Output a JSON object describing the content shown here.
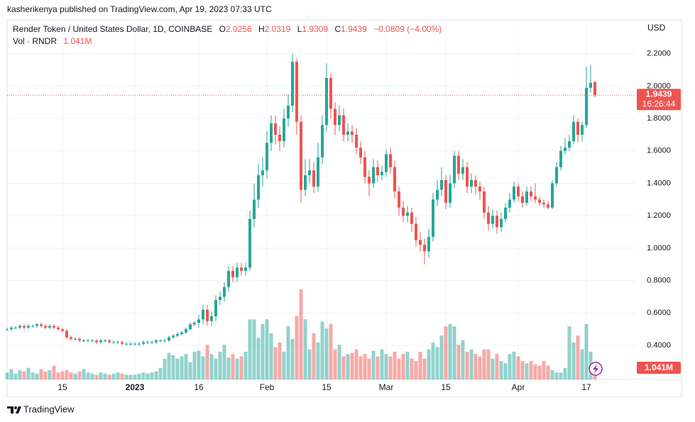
{
  "header": {
    "publisher": "kasherikenya published on TradingView.com, Apr 19, 2023 07:33 UTC",
    "footer": "TradingView"
  },
  "chart_data": {
    "type": "candlestick",
    "title": "Render Token / United States Dollar, 1D, COINBASE",
    "ohlc_labels": [
      "O",
      "H",
      "L",
      "C"
    ],
    "change": "−0.0809 (−4.00%)",
    "currency": "USD",
    "countdown": "16:26:44",
    "up_color": "#26a69a",
    "down_color": "#ef5350",
    "grid": true,
    "categories": [
      null,
      null,
      null,
      null,
      null,
      null,
      null,
      null,
      null,
      null,
      null,
      null,
      null,
      "15",
      null,
      null,
      null,
      null,
      null,
      null,
      null,
      null,
      null,
      null,
      null,
      null,
      null,
      null,
      null,
      null,
      "2023",
      null,
      null,
      null,
      null,
      null,
      null,
      null,
      null,
      null,
      null,
      null,
      null,
      null,
      null,
      "16",
      null,
      null,
      null,
      null,
      null,
      null,
      null,
      null,
      null,
      null,
      null,
      null,
      null,
      null,
      null,
      "Feb",
      null,
      null,
      null,
      null,
      null,
      null,
      null,
      null,
      null,
      null,
      null,
      null,
      null,
      "15",
      null,
      null,
      null,
      null,
      null,
      null,
      null,
      null,
      null,
      null,
      null,
      null,
      null,
      "Mar",
      null,
      null,
      null,
      null,
      null,
      null,
      null,
      null,
      null,
      null,
      null,
      null,
      null,
      "15",
      null,
      null,
      null,
      null,
      null,
      null,
      null,
      null,
      null,
      null,
      null,
      null,
      null,
      null,
      null,
      null,
      "Apr",
      null,
      null,
      null,
      null,
      null,
      null,
      null,
      null,
      null,
      null,
      null,
      null,
      null,
      null,
      null,
      "17",
      null,
      null
    ],
    "open": [
      0.5,
      0.5,
      0.51,
      0.51,
      0.52,
      0.51,
      0.52,
      0.52,
      0.53,
      0.52,
      0.51,
      0.52,
      0.51,
      0.5,
      0.49,
      0.45,
      0.44,
      0.44,
      0.43,
      0.43,
      0.43,
      0.43,
      0.42,
      0.43,
      0.43,
      0.42,
      0.42,
      0.42,
      0.41,
      0.41,
      0.41,
      0.41,
      0.41,
      0.42,
      0.42,
      0.42,
      0.43,
      0.43,
      0.43,
      0.45,
      0.46,
      0.47,
      0.48,
      0.5,
      0.53,
      0.54,
      0.56,
      0.62,
      0.55,
      0.58,
      0.68,
      0.7,
      0.76,
      0.86,
      0.82,
      0.88,
      0.86,
      0.88,
      1.18,
      1.3,
      1.45,
      1.48,
      1.65,
      1.77,
      1.7,
      1.66,
      1.8,
      1.88,
      2.15,
      1.78,
      1.36,
      1.45,
      1.48,
      1.38,
      1.56,
      1.76,
      2.05,
      1.86,
      1.76,
      1.82,
      1.7,
      1.72,
      1.7,
      1.62,
      1.56,
      1.44,
      1.4,
      1.5,
      1.45,
      1.47,
      1.58,
      1.5,
      1.35,
      1.25,
      1.2,
      1.22,
      1.15,
      1.05,
      1.02,
      0.98,
      1.07,
      1.3,
      1.36,
      1.42,
      1.28,
      1.4,
      1.57,
      1.46,
      1.5,
      1.38,
      1.42,
      1.38,
      1.35,
      1.22,
      1.15,
      1.2,
      1.13,
      1.18,
      1.25,
      1.3,
      1.38,
      1.32,
      1.28,
      1.35,
      1.32,
      1.3,
      1.28,
      1.27,
      1.25,
      1.4,
      1.5,
      1.6,
      1.62,
      1.66,
      1.78,
      1.7,
      1.76,
      1.99,
      2.0256
    ],
    "high": [
      0.51,
      0.52,
      0.52,
      0.53,
      0.53,
      0.53,
      0.53,
      0.54,
      0.54,
      0.53,
      0.53,
      0.53,
      0.52,
      0.51,
      0.5,
      0.46,
      0.45,
      0.45,
      0.44,
      0.44,
      0.44,
      0.44,
      0.44,
      0.44,
      0.44,
      0.43,
      0.43,
      0.43,
      0.42,
      0.42,
      0.42,
      0.42,
      0.43,
      0.43,
      0.43,
      0.44,
      0.44,
      0.44,
      0.46,
      0.47,
      0.48,
      0.49,
      0.51,
      0.54,
      0.55,
      0.59,
      0.65,
      0.65,
      0.61,
      0.71,
      0.73,
      0.79,
      0.89,
      0.89,
      0.91,
      0.91,
      0.91,
      1.23,
      1.4,
      1.52,
      1.56,
      1.72,
      1.82,
      1.82,
      1.75,
      1.86,
      1.95,
      2.2,
      2.17,
      1.82,
      1.55,
      1.55,
      1.53,
      1.65,
      1.82,
      2.14,
      2.08,
      1.9,
      1.88,
      1.86,
      1.77,
      1.76,
      1.74,
      1.66,
      1.6,
      1.48,
      1.55,
      1.54,
      1.51,
      1.61,
      1.62,
      1.54,
      1.38,
      1.29,
      1.26,
      1.25,
      1.19,
      1.1,
      1.06,
      1.12,
      1.34,
      1.42,
      1.5,
      1.45,
      1.45,
      1.6,
      1.6,
      1.55,
      1.53,
      1.46,
      1.45,
      1.41,
      1.38,
      1.26,
      1.24,
      1.23,
      1.22,
      1.28,
      1.34,
      1.41,
      1.4,
      1.35,
      1.38,
      1.38,
      1.4,
      1.32,
      1.3,
      1.29,
      1.42,
      1.53,
      1.63,
      1.68,
      1.7,
      1.82,
      1.8,
      1.78,
      2.12,
      2.13,
      2.0319
    ],
    "low": [
      0.49,
      0.49,
      0.5,
      0.5,
      0.5,
      0.5,
      0.51,
      0.51,
      0.51,
      0.5,
      0.5,
      0.5,
      0.49,
      0.48,
      0.44,
      0.43,
      0.43,
      0.42,
      0.42,
      0.42,
      0.42,
      0.41,
      0.41,
      0.42,
      0.41,
      0.41,
      0.41,
      0.4,
      0.4,
      0.4,
      0.4,
      0.4,
      0.4,
      0.41,
      0.41,
      0.41,
      0.42,
      0.42,
      0.42,
      0.44,
      0.45,
      0.46,
      0.47,
      0.49,
      0.52,
      0.51,
      0.53,
      0.52,
      0.52,
      0.55,
      0.65,
      0.67,
      0.73,
      0.79,
      0.79,
      0.83,
      0.83,
      0.86,
      1.13,
      1.25,
      1.38,
      1.43,
      1.6,
      1.64,
      1.6,
      1.62,
      1.75,
      1.84,
      1.7,
      1.28,
      1.32,
      1.4,
      1.34,
      1.35,
      1.52,
      1.72,
      1.8,
      1.7,
      1.72,
      1.66,
      1.66,
      1.65,
      1.58,
      1.52,
      1.4,
      1.32,
      1.37,
      1.41,
      1.42,
      1.44,
      1.46,
      1.31,
      1.2,
      1.16,
      1.16,
      1.1,
      1.01,
      0.98,
      0.9,
      0.94,
      1.04,
      1.26,
      1.32,
      1.24,
      1.25,
      1.37,
      1.42,
      1.42,
      1.34,
      1.34,
      1.33,
      1.3,
      1.18,
      1.11,
      1.12,
      1.09,
      1.1,
      1.16,
      1.22,
      1.28,
      1.29,
      1.25,
      1.26,
      1.29,
      1.28,
      1.26,
      1.25,
      1.24,
      1.24,
      1.38,
      1.48,
      1.58,
      1.6,
      1.64,
      1.65,
      1.66,
      1.74,
      1.96,
      1.9309
    ],
    "close": [
      0.5,
      0.51,
      0.51,
      0.52,
      0.51,
      0.52,
      0.52,
      0.53,
      0.52,
      0.51,
      0.52,
      0.51,
      0.5,
      0.49,
      0.45,
      0.44,
      0.44,
      0.43,
      0.43,
      0.43,
      0.43,
      0.42,
      0.43,
      0.43,
      0.42,
      0.42,
      0.42,
      0.41,
      0.41,
      0.41,
      0.41,
      0.41,
      0.42,
      0.42,
      0.42,
      0.43,
      0.43,
      0.43,
      0.45,
      0.46,
      0.47,
      0.48,
      0.5,
      0.53,
      0.54,
      0.56,
      0.62,
      0.55,
      0.58,
      0.68,
      0.7,
      0.76,
      0.86,
      0.82,
      0.88,
      0.86,
      0.88,
      1.18,
      1.3,
      1.45,
      1.48,
      1.65,
      1.77,
      1.7,
      1.66,
      1.8,
      1.88,
      2.15,
      1.78,
      1.36,
      1.45,
      1.48,
      1.38,
      1.56,
      1.76,
      2.05,
      1.86,
      1.76,
      1.82,
      1.7,
      1.72,
      1.7,
      1.62,
      1.56,
      1.44,
      1.4,
      1.5,
      1.45,
      1.47,
      1.58,
      1.5,
      1.35,
      1.25,
      1.2,
      1.22,
      1.15,
      1.05,
      1.02,
      0.98,
      1.07,
      1.3,
      1.36,
      1.42,
      1.28,
      1.4,
      1.57,
      1.46,
      1.5,
      1.38,
      1.42,
      1.38,
      1.35,
      1.22,
      1.15,
      1.2,
      1.13,
      1.18,
      1.25,
      1.3,
      1.38,
      1.32,
      1.28,
      1.35,
      1.32,
      1.3,
      1.28,
      1.27,
      1.25,
      1.4,
      1.5,
      1.6,
      1.62,
      1.66,
      1.78,
      1.7,
      1.76,
      1.99,
      2.02,
      1.9439
    ],
    "volume": {
      "name": "Vol · RNDR",
      "last_label": "1.041M",
      "lim": [
        0,
        31000000.0
      ],
      "values": [
        600000.0,
        900000.0,
        500000.0,
        800000.0,
        700000.0,
        1000000.0,
        600000.0,
        500000.0,
        900000.0,
        700000.0,
        800000.0,
        1200000.0,
        600000.0,
        700000.0,
        800000.0,
        600000.0,
        500000.0,
        700000.0,
        900000.0,
        600000.0,
        500000.0,
        400000.0,
        600000.0,
        500000.0,
        400000.0,
        500000.0,
        600000.0,
        500000.0,
        400000.0,
        400000.0,
        400000.0,
        500000.0,
        600000.0,
        500000.0,
        600000.0,
        700000.0,
        1000000.0,
        1800000.0,
        2300000.0,
        2100000.0,
        1800000.0,
        2000000.0,
        2200000.0,
        1500000.0,
        2400000.0,
        2500000.0,
        2000000.0,
        3000000.0,
        2200000.0,
        1800000.0,
        2400000.0,
        3000000.0,
        1900000.0,
        2200000.0,
        1800000.0,
        2000000.0,
        2400000.0,
        5200000.0,
        5200000.0,
        3600000.0,
        4800000.0,
        5200000.0,
        4000000.0,
        2800000.0,
        3200000.0,
        2400000.0,
        4600000.0,
        3500000.0,
        5500000.0,
        7800000.0,
        5200000.0,
        2600000.0,
        4000000.0,
        3200000.0,
        5000000.0,
        4400000.0,
        4800000.0,
        2600000.0,
        3000000.0,
        2000000.0,
        2200000.0,
        2300000.0,
        2600000.0,
        2000000.0,
        2200000.0,
        1800000.0,
        2500000.0,
        2000000.0,
        2600000.0,
        2200000.0,
        2000000.0,
        2400000.0,
        1800000.0,
        2200000.0,
        2400000.0,
        1800000.0,
        1600000.0,
        2400000.0,
        1800000.0,
        2600000.0,
        3200000.0,
        2800000.0,
        3800000.0,
        4600000.0,
        4800000.0,
        4600000.0,
        3000000.0,
        3400000.0,
        2400000.0,
        2600000.0,
        2200000.0,
        2000000.0,
        2600000.0,
        2600000.0,
        1800000.0,
        2200000.0,
        1600000.0,
        1400000.0,
        2200000.0,
        2400000.0,
        2000000.0,
        1600000.0,
        1400000.0,
        1600000.0,
        1300000.0,
        1200000.0,
        1600000.0,
        1200000.0,
        800000.0,
        600000.0,
        600000.0,
        1000000.0,
        4600000.0,
        3200000.0,
        3800000.0,
        2600000.0,
        4800000.0,
        2400000.0,
        1041000
      ]
    },
    "ylim": [
      0.19,
      2.4
    ],
    "yticks": [
      {
        "value": 2.2,
        "label": "2.2000"
      },
      {
        "value": 2.0,
        "label": "2.0000"
      },
      {
        "value": 1.8,
        "label": "1.8000"
      },
      {
        "value": 1.6,
        "label": "1.6000"
      },
      {
        "value": 1.4,
        "label": "1.4000"
      },
      {
        "value": 1.2,
        "label": "1.2000"
      },
      {
        "value": 1.0,
        "label": "1.0000"
      },
      {
        "value": 0.8,
        "label": "0.8000"
      },
      {
        "value": 0.6,
        "label": "0.6000"
      },
      {
        "value": 0.4,
        "label": "0.4000"
      }
    ]
  }
}
